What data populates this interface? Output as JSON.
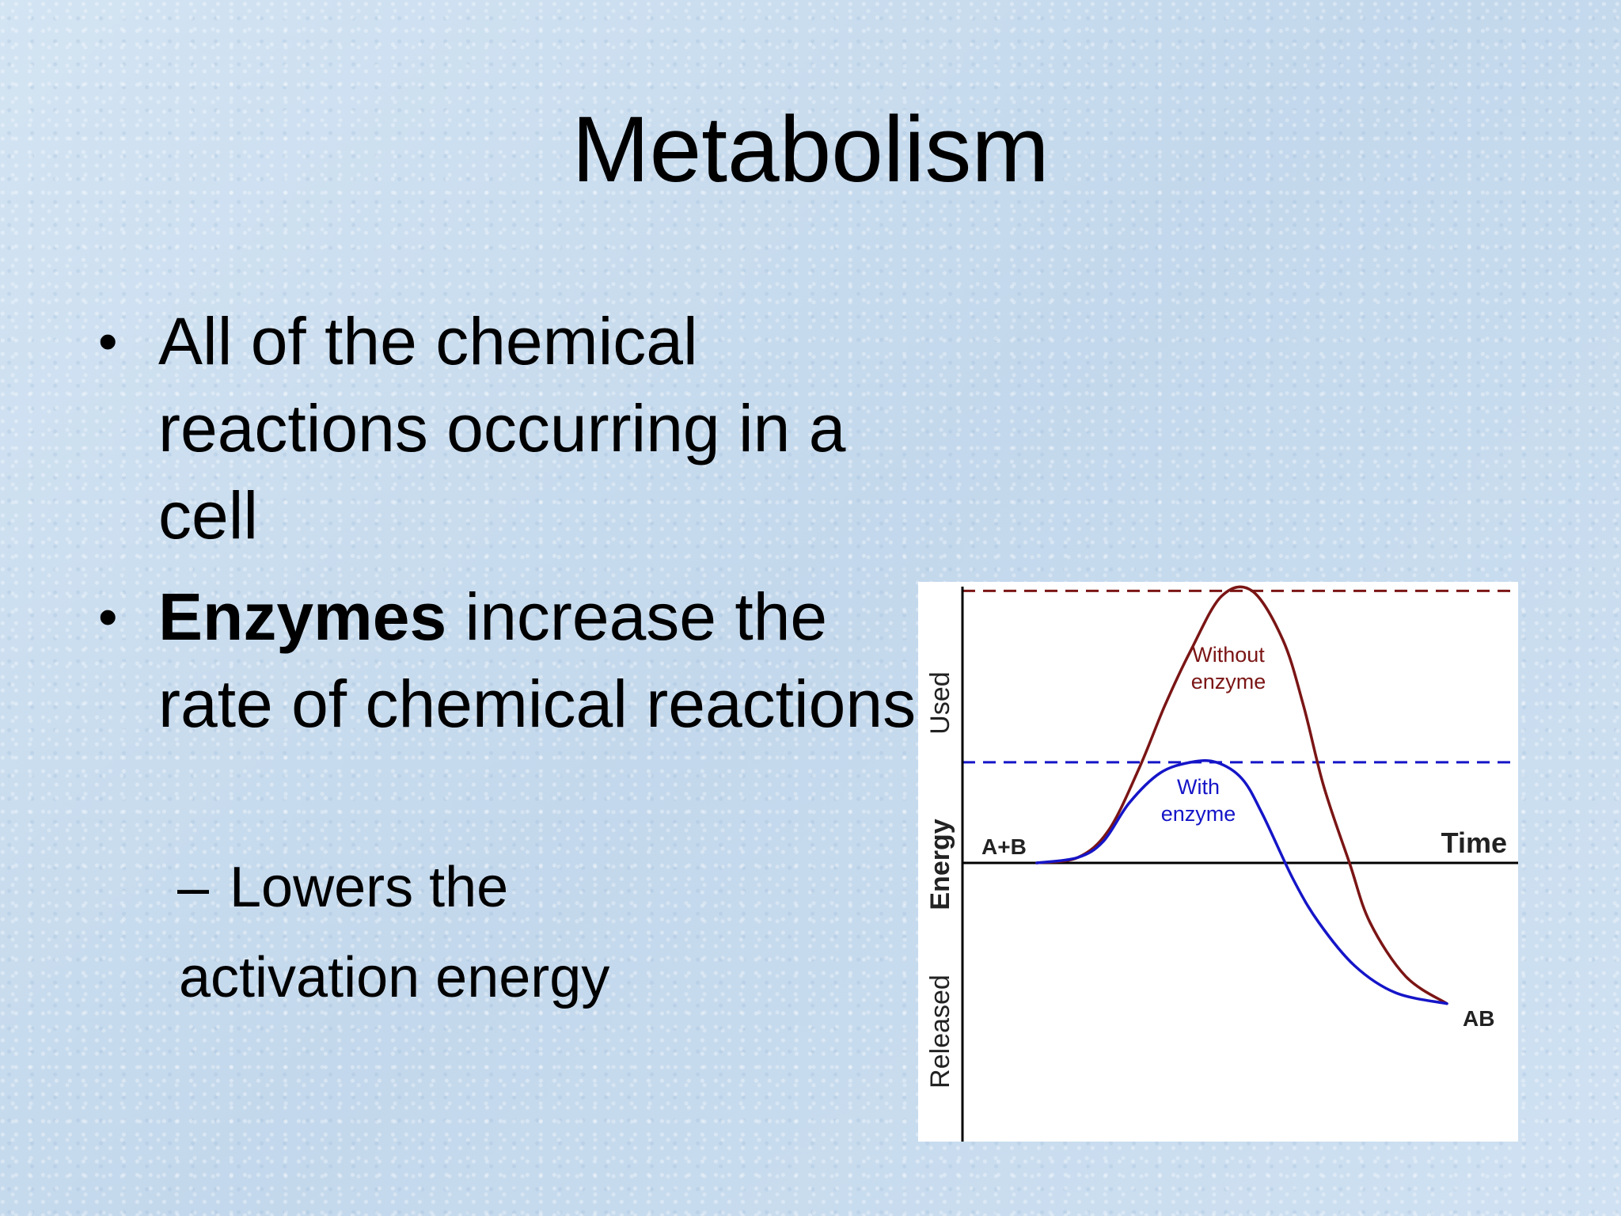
{
  "slide": {
    "title": "Metabolism",
    "bullets": [
      {
        "text": "All of the chemical reactions occurring in a cell"
      },
      {
        "bold": "Enzymes",
        "text": " increase the rate of chemical reactions"
      }
    ],
    "subbullet": {
      "dash": "–",
      "line1": "Lowers the",
      "line2": "activation energy"
    }
  },
  "chart_data": {
    "type": "line",
    "title": "",
    "xlabel": "Time",
    "ylabel": "Released   Energy   Used",
    "series": [
      {
        "name": "Without enzyme",
        "color": "#7b1515",
        "x": [
          0,
          0.08,
          0.14,
          0.2,
          0.25,
          0.3,
          0.36,
          0.42,
          0.48,
          0.52,
          0.56,
          0.61,
          0.65,
          0.72,
          0.8
        ],
        "y": [
          0,
          0.02,
          0.12,
          0.35,
          0.58,
          0.78,
          0.98,
          1.0,
          0.82,
          0.58,
          0.28,
          0.0,
          -0.22,
          -0.42,
          -0.52
        ]
      },
      {
        "name": "With enzyme",
        "color": "#1515c8",
        "x": [
          0,
          0.08,
          0.13,
          0.18,
          0.24,
          0.3,
          0.35,
          0.4,
          0.44,
          0.5,
          0.55,
          0.62,
          0.7,
          0.8
        ],
        "y": [
          0,
          0.02,
          0.08,
          0.22,
          0.33,
          0.37,
          0.37,
          0.31,
          0.18,
          -0.06,
          -0.22,
          -0.38,
          -0.48,
          -0.52
        ]
      }
    ],
    "reference_lines": [
      {
        "name": "activation without enzyme",
        "y": 1.0,
        "color": "#7b1515",
        "style": "dashed"
      },
      {
        "name": "activation with enzyme",
        "y": 0.37,
        "color": "#1515c8",
        "style": "dashed"
      }
    ],
    "annotations": {
      "reactants": "A+B",
      "product": "AB",
      "without_label": [
        "Without",
        "enzyme"
      ],
      "with_label": [
        "With",
        "enzyme"
      ],
      "y_used": "Used",
      "y_energy": "Energy",
      "y_released": "Released"
    },
    "xlim": [
      0,
      1
    ],
    "ylim": [
      -1.03,
      1.01
    ]
  }
}
